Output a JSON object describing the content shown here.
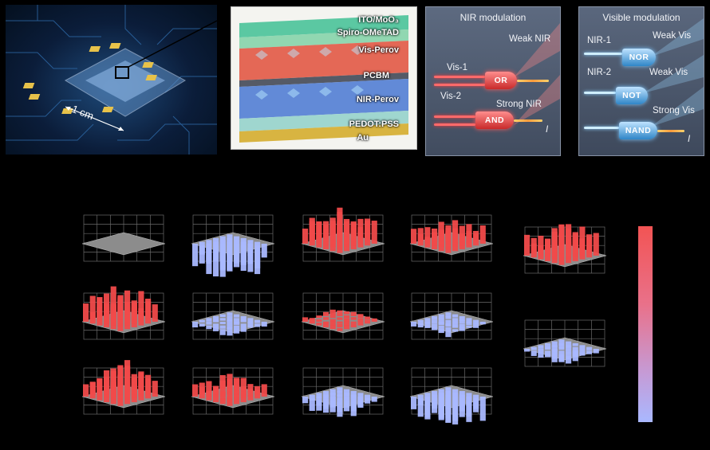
{
  "chip": {
    "scale_label": "1 cm"
  },
  "stack": {
    "layers": [
      {
        "label": "ITO/MoO₃",
        "color": "#3fbf94"
      },
      {
        "label": "Spiro-OMeTAD",
        "color": "#7fd1a6"
      },
      {
        "label": "Vis-Perov",
        "color": "#e0452f"
      },
      {
        "label": "PCBM",
        "color": "#555a66"
      },
      {
        "label": "NIR-Perov",
        "color": "#3d6fd1"
      },
      {
        "label": "PEDOT:PSS",
        "color": "#9fd6cf"
      },
      {
        "label": "Au",
        "color": "#d8b441"
      }
    ]
  },
  "nir_modulation": {
    "title": "NIR modulation",
    "weak_label": "Weak NIR",
    "strong_label": "Strong NIR",
    "input1": "Vis-1",
    "input2": "Vis-2",
    "gate1": "OR",
    "gate2": "AND",
    "output_symbol": "I"
  },
  "visible_modulation": {
    "title": "Visible modulation",
    "input1": "NIR-1",
    "input2": "NIR-2",
    "weak_label1": "Weak Vis",
    "weak_label2": "Weak Vis",
    "strong_label": "Strong Vis",
    "gate1": "NOR",
    "gate2": "NOT",
    "gate3": "NAND",
    "output_symbol": "I"
  },
  "colors": {
    "positive": "#f04a4a",
    "negative": "#a9b8ff",
    "neutral": "#8c8c8c",
    "background": "#000000"
  },
  "bar_grids": [
    {
      "row": 0,
      "col": 0,
      "level": 0.0,
      "sign": "neg"
    },
    {
      "row": 0,
      "col": 1,
      "level": 1.0,
      "sign": "neg"
    },
    {
      "row": 0,
      "col": 2,
      "level": 0.9,
      "sign": "pos"
    },
    {
      "row": 0,
      "col": 3,
      "level": 0.6,
      "sign": "pos"
    },
    {
      "row": 0,
      "col": 4,
      "level": 0.8,
      "sign": "pos"
    },
    {
      "row": 1,
      "col": 0,
      "level": 0.9,
      "sign": "pos"
    },
    {
      "row": 1,
      "col": 1,
      "level": 0.2,
      "sign": "neg"
    },
    {
      "row": 1,
      "col": 2,
      "level": 0.15,
      "sign": "pos"
    },
    {
      "row": 1,
      "col": 3,
      "level": 0.2,
      "sign": "neg"
    },
    {
      "row": 1,
      "col": 4,
      "level": 0.25,
      "sign": "neg"
    },
    {
      "row": 2,
      "col": 0,
      "level": 1.0,
      "sign": "pos"
    },
    {
      "row": 2,
      "col": 1,
      "level": 0.45,
      "sign": "pos"
    },
    {
      "row": 2,
      "col": 2,
      "level": 0.45,
      "sign": "neg"
    },
    {
      "row": 2,
      "col": 3,
      "level": 0.8,
      "sign": "neg"
    }
  ]
}
